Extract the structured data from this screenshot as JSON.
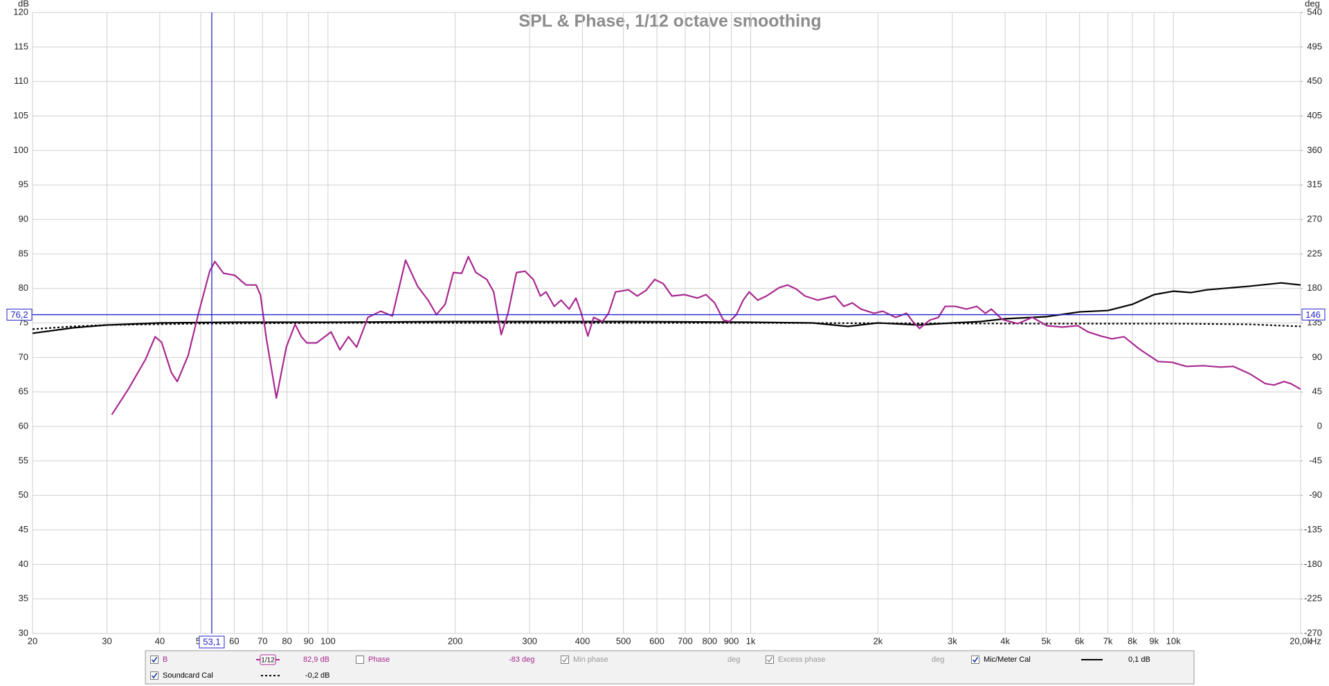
{
  "chart_data": {
    "type": "line",
    "title": "SPL & Phase, 1/12 octave smoothing",
    "y_label": "dB",
    "y2_label": "deg",
    "x_label": "Hz",
    "xscale": "log",
    "grid": true,
    "xlim": [
      20,
      20000
    ],
    "ylim": [
      30,
      120
    ],
    "y2lim": [
      -270,
      540
    ],
    "xticks": [
      20,
      30,
      40,
      50,
      60,
      70,
      80,
      90,
      100,
      200,
      300,
      400,
      500,
      600,
      700,
      800,
      900,
      {
        "value": 1000,
        "label": "1k"
      },
      {
        "value": 2000,
        "label": "2k"
      },
      {
        "value": 3000,
        "label": "3k"
      },
      {
        "value": 4000,
        "label": "4k"
      },
      {
        "value": 5000,
        "label": "5k"
      },
      {
        "value": 6000,
        "label": "6k"
      },
      {
        "value": 7000,
        "label": "7k"
      },
      {
        "value": 8000,
        "label": "8k"
      },
      {
        "value": 9000,
        "label": "9k"
      },
      {
        "value": 10000,
        "label": "10k"
      },
      {
        "value": 20000,
        "label": "20,0k"
      }
    ],
    "yticks": [
      30,
      35,
      40,
      45,
      50,
      55,
      60,
      65,
      70,
      75,
      80,
      85,
      90,
      95,
      100,
      105,
      110,
      115,
      120
    ],
    "y2ticks": [
      -270,
      -225,
      -180,
      -135,
      -90,
      -45,
      0,
      45,
      90,
      135,
      180,
      225,
      270,
      315,
      360,
      405,
      450,
      495,
      540
    ],
    "cursor": {
      "x": {
        "value": 53.1,
        "label": "53,1"
      },
      "y": {
        "value": 76.2,
        "label": "76,2"
      },
      "y2": 146,
      "color": "#2323c8"
    },
    "series": [
      {
        "name": "B",
        "color": "#a8288f",
        "dash": "solid",
        "checked": true,
        "smoothing": "1/12",
        "readout": "82,9 dB",
        "x": [
          30.8,
          33.7,
          37.0,
          39.0,
          40.4,
          42.6,
          44.0,
          46.7,
          49.4,
          52.5,
          54.0,
          56.6,
          60.2,
          64.0,
          67.6,
          69.2,
          71.5,
          75.5,
          79.7,
          83.6,
          86.5,
          89.1,
          94.0,
          101.7,
          106.7,
          111.8,
          116.9,
          124.3,
          133.3,
          142,
          152.6,
          163,
          172.5,
          180.6,
          189.3,
          198,
          207.2,
          214.8,
          223.9,
          237.5,
          246.6,
          256.9,
          266.6,
          279.2,
          292.5,
          306,
          318,
          328,
          343,
          356,
          372,
          386,
          396,
          412,
          425,
          446,
          461,
          479,
          514,
          539,
          565,
          593,
          621,
          651,
          698,
          748,
          784,
          822,
          862,
          891,
          925,
          960,
          992,
          1039,
          1090,
          1167,
          1223,
          1282,
          1344,
          1441,
          1510,
          1583,
          1660,
          1740,
          1824,
          1958,
          2053,
          2202,
          2338,
          2418,
          2509,
          2652,
          2779,
          2884,
          3051,
          3240,
          3427,
          3591,
          3710,
          3938,
          4285,
          4640,
          5024,
          5463,
          5938,
          6280,
          6737,
          7155,
          7642,
          8312,
          9206,
          9919,
          10730,
          11780,
          12920,
          13850,
          15190,
          16500,
          17290,
          18270,
          18960,
          20000
        ],
        "values": [
          61.7,
          65.4,
          69.7,
          73.0,
          72.2,
          67.8,
          66.5,
          70.3,
          76.4,
          82.5,
          83.9,
          82.2,
          81.9,
          80.5,
          80.5,
          79.1,
          72.7,
          64.1,
          71.5,
          74.8,
          73.0,
          72.1,
          72.1,
          73.7,
          71.1,
          73.0,
          71.5,
          75.8,
          76.7,
          76.0,
          84.1,
          80.3,
          78.3,
          76.2,
          77.7,
          82.3,
          82.2,
          84.6,
          82.3,
          81.3,
          79.5,
          73.3,
          76.4,
          82.3,
          82.5,
          81.3,
          78.9,
          79.5,
          77.4,
          78.3,
          77.0,
          78.6,
          76.7,
          73.1,
          75.8,
          75.2,
          76.4,
          79.5,
          79.8,
          78.9,
          79.7,
          81.3,
          80.7,
          78.9,
          79.1,
          78.6,
          79.1,
          77.9,
          75.4,
          75.2,
          76.2,
          78.3,
          79.5,
          78.3,
          78.9,
          80.1,
          80.5,
          79.9,
          78.9,
          78.3,
          78.6,
          78.9,
          77.4,
          77.9,
          77.0,
          76.4,
          76.7,
          75.8,
          76.4,
          75.2,
          74.2,
          75.4,
          75.8,
          77.4,
          77.4,
          77.0,
          77.4,
          76.4,
          77.0,
          75.5,
          74.9,
          75.8,
          74.6,
          74.4,
          74.6,
          73.7,
          73.1,
          72.7,
          73.0,
          71.2,
          69.4,
          69.3,
          68.7,
          68.8,
          68.6,
          68.7,
          67.6,
          66.2,
          66.0,
          66.5,
          66.2,
          65.4
        ]
      },
      {
        "name": "Mic/Meter Cal",
        "color": "#000000",
        "dash": "solid",
        "checked": true,
        "readout": "0,1 dB",
        "x": [
          20,
          25,
          30,
          40,
          60,
          100,
          200,
          500,
          1000,
          1400,
          1700,
          2000,
          2500,
          3000,
          3500,
          4000,
          5000,
          6000,
          7000,
          8000,
          9000,
          10000,
          11000,
          12000,
          15000,
          18000,
          20000
        ],
        "values": [
          73.5,
          74.3,
          74.7,
          75.0,
          75.1,
          75.1,
          75.2,
          75.2,
          75.1,
          75.0,
          74.5,
          75.0,
          74.7,
          75.0,
          75.2,
          75.6,
          75.9,
          76.6,
          76.8,
          77.7,
          79.1,
          79.6,
          79.4,
          79.8,
          80.3,
          80.8,
          80.5
        ]
      },
      {
        "name": "Soundcard Cal",
        "color": "#000000",
        "dash": "dotted",
        "checked": true,
        "readout": "-0,2 dB",
        "x": [
          20,
          25,
          30,
          50,
          100,
          1000,
          5000,
          10000,
          15000,
          20000
        ],
        "values": [
          74.1,
          74.5,
          74.7,
          74.9,
          75.0,
          75.0,
          74.9,
          74.9,
          74.8,
          74.5
        ]
      }
    ],
    "phase_traces": [
      {
        "name": "Phase",
        "color": "#a8288f",
        "checked": false,
        "readout": "-83 deg"
      },
      {
        "name": "Min phase",
        "color": "#9a9a9a",
        "checked": true,
        "readout": "deg"
      },
      {
        "name": "Excess phase",
        "color": "#9a9a9a",
        "checked": true,
        "readout": "deg"
      }
    ]
  }
}
